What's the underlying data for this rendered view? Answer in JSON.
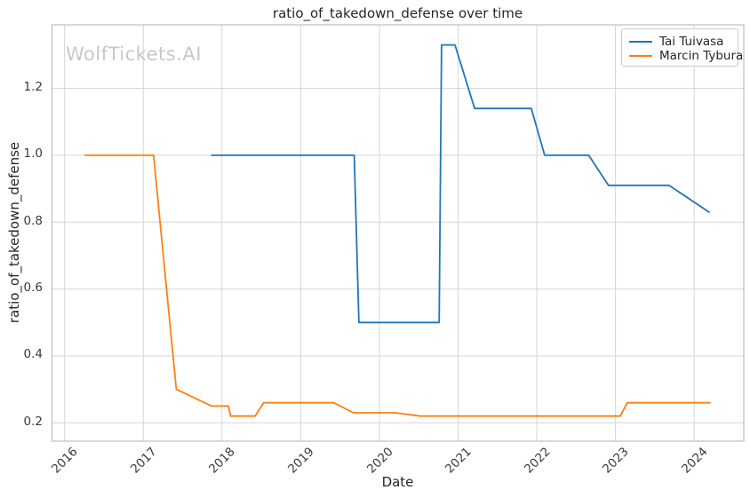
{
  "figure": {
    "watermark": "WolfTickets.AI"
  },
  "chart_data": {
    "type": "line",
    "title": "ratio_of_takedown_defense over time",
    "xlabel": "Date",
    "ylabel": "ratio_of_takedown_defense",
    "xlim": [
      2015.84,
      2024.63
    ],
    "ylim": [
      0.145,
      1.39
    ],
    "x_ticks": [
      2016,
      2017,
      2018,
      2019,
      2020,
      2021,
      2022,
      2023,
      2024
    ],
    "y_ticks": [
      0.2,
      0.4,
      0.6,
      0.8,
      1.0,
      1.2
    ],
    "grid": true,
    "legend_position": "upper right",
    "series": [
      {
        "name": "Tai Tuivasa",
        "color": "#1f77b4",
        "points": [
          [
            2017.87,
            1.0
          ],
          [
            2019.68,
            1.0
          ],
          [
            2019.74,
            0.5
          ],
          [
            2020.76,
            0.5
          ],
          [
            2020.79,
            1.33
          ],
          [
            2020.96,
            1.33
          ],
          [
            2021.21,
            1.14
          ],
          [
            2021.93,
            1.14
          ],
          [
            2022.1,
            1.0
          ],
          [
            2022.66,
            1.0
          ],
          [
            2022.91,
            0.91
          ],
          [
            2023.68,
            0.91
          ],
          [
            2024.19,
            0.83
          ]
        ]
      },
      {
        "name": "Marcin Tybura",
        "color": "#ff7f0e",
        "points": [
          [
            2016.26,
            1.0
          ],
          [
            2017.13,
            1.0
          ],
          [
            2017.42,
            0.3
          ],
          [
            2017.87,
            0.25
          ],
          [
            2018.08,
            0.25
          ],
          [
            2018.11,
            0.22
          ],
          [
            2018.42,
            0.22
          ],
          [
            2018.53,
            0.26
          ],
          [
            2019.42,
            0.26
          ],
          [
            2019.67,
            0.23
          ],
          [
            2020.2,
            0.23
          ],
          [
            2020.52,
            0.22
          ],
          [
            2023.06,
            0.22
          ],
          [
            2023.15,
            0.26
          ],
          [
            2024.2,
            0.26
          ]
        ]
      }
    ],
    "colors": {
      "grid": "#d5d5d5",
      "spine": "#c3c3c3",
      "tick_text": "#3a3a3a",
      "title_text": "#262626",
      "watermark": "#c8c8c8",
      "background": "#ffffff"
    }
  }
}
